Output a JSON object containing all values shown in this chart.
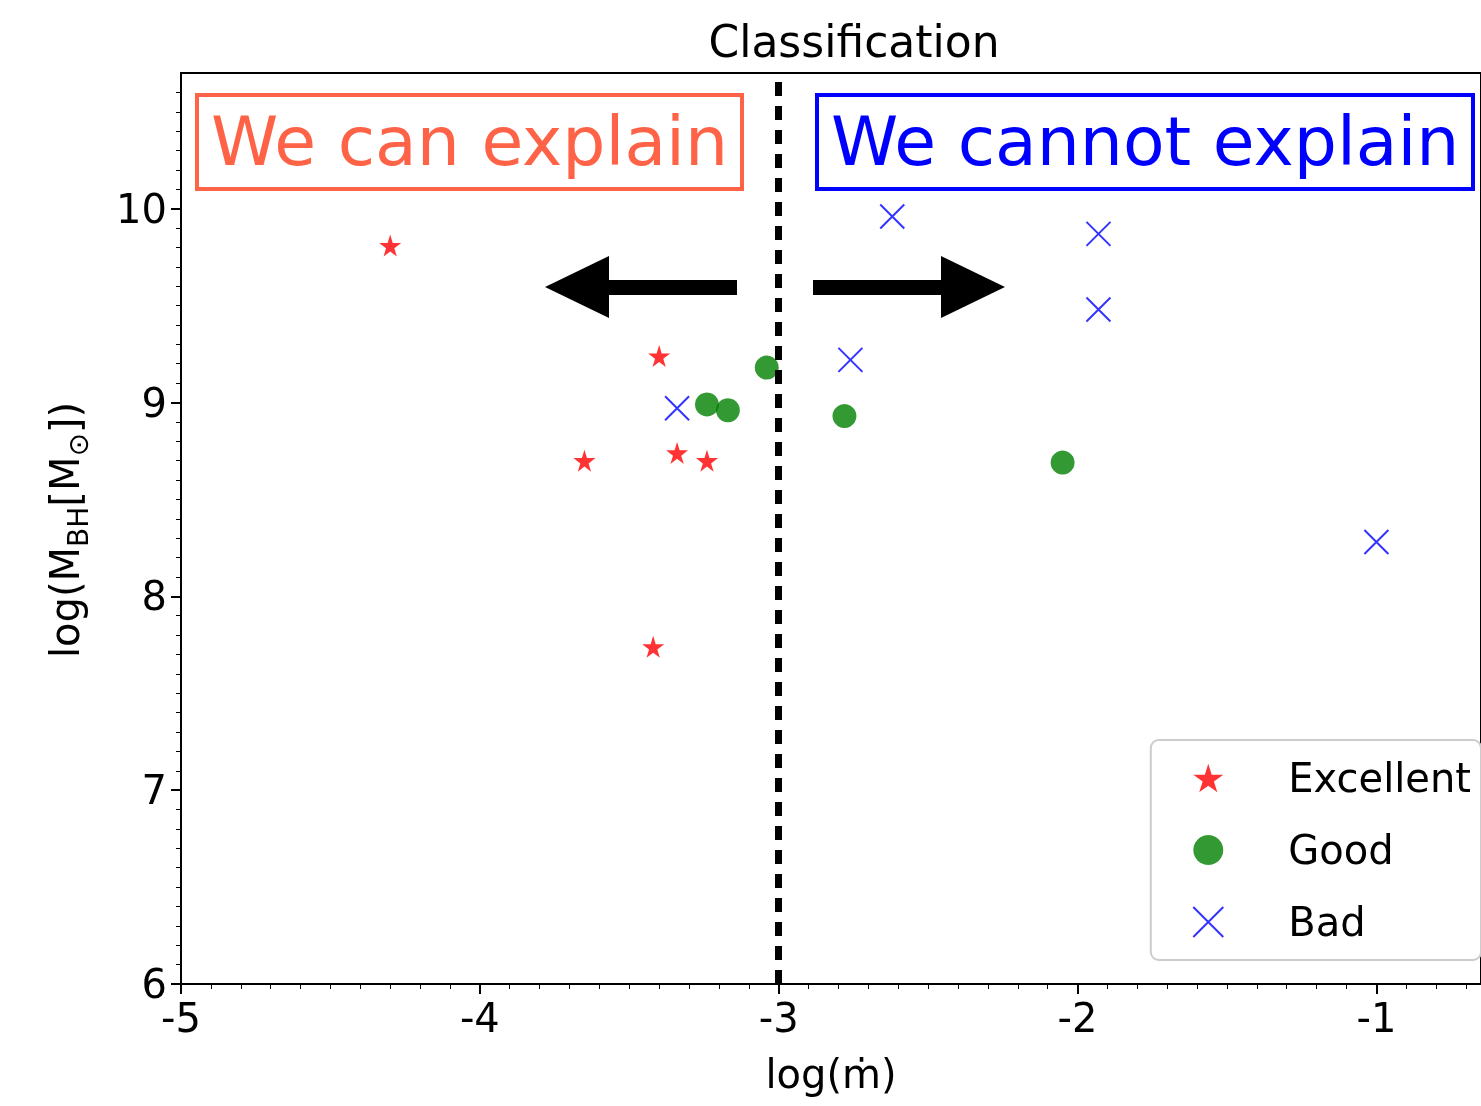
{
  "chart_data": {
    "type": "scatter",
    "title": "Classification",
    "xlabel": "log(ṁ)",
    "ylabel": "log(M$_{BH}$[M$_{⊙}$])",
    "xlim": [
      -5,
      -0.65
    ],
    "xticks": [
      {
        "value": -5,
        "label": "-5"
      },
      {
        "value": -4,
        "label": "-4"
      },
      {
        "value": -3,
        "label": "-3"
      },
      {
        "value": -2,
        "label": "-2"
      },
      {
        "value": -1,
        "label": "-1"
      }
    ],
    "ylim": [
      6,
      10.7
    ],
    "yticks": [
      6,
      7,
      8,
      9,
      10
    ],
    "grid": false,
    "legend": "bottom right",
    "series": [
      {
        "name": "Excellent",
        "color": "#ff0000",
        "marker": "star",
        "x": [
          -4.3,
          -3.4,
          -3.65,
          -3.34,
          -3.24,
          -3.42
        ],
        "values": [
          9.81,
          9.24,
          8.7,
          8.74,
          8.7,
          7.74
        ]
      },
      {
        "name": "Good",
        "color": "#008000",
        "marker": "circle",
        "x": [
          -3.04,
          -3.24,
          -3.17,
          -2.78,
          -2.05
        ],
        "values": [
          9.18,
          8.99,
          8.96,
          8.93,
          8.69
        ]
      },
      {
        "name": "Bad",
        "color": "#0000ff",
        "marker": "cross",
        "x": [
          -2.62,
          -1.93,
          -1.93,
          -2.76,
          -3.34,
          -1.0
        ],
        "values": [
          9.96,
          9.87,
          9.48,
          9.22,
          8.97,
          8.28
        ]
      }
    ],
    "ref_lines": [
      {
        "axis": "x",
        "value": -3,
        "color": "#000000",
        "line_style": "dashed"
      }
    ],
    "annotations": [
      "We can explain",
      "We cannot explain"
    ]
  }
}
